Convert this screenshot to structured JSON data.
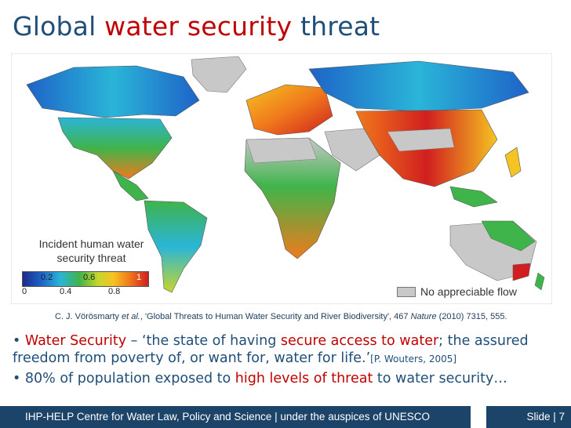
{
  "title": {
    "part1": "Global ",
    "accent": "water security",
    "part2": " threat"
  },
  "map": {
    "legend_title": "Incident human water security threat",
    "legend_ticks_top": [
      "0.2",
      "0.6",
      "1"
    ],
    "legend_ticks_bottom": [
      "0",
      "0.4",
      "0.8"
    ],
    "no_flow_label": "No appreciable flow",
    "colors": {
      "ocean": "#ffffff",
      "no_flow": "#c8c8c8",
      "low": "#1e63c8",
      "mid": "#3fb44a",
      "high": "#d11f1f"
    }
  },
  "citation": {
    "authors": "C. J. Vörösmarty ",
    "etal": "et al.",
    "rest": ", 'Global Threats to Human Water Security and River Biodiversity', 467 ",
    "journal": "Nature",
    "end": " (2010) 7315, 555."
  },
  "bullets": {
    "b1_lead": "• ",
    "b1_term": "Water Security",
    "b1_mid": " – ‘the state of having ",
    "b1_hl": "secure access to water",
    "b1_rest": "; the assured freedom from poverty of, or want for, water for life.’",
    "b1_ref": "[P. Wouters, 2005]",
    "b2_lead": "• 80% of population exposed to ",
    "b2_hl": "high levels of threat",
    "b2_rest": " to water security…"
  },
  "footer": {
    "left": "IHP-HELP Centre for Water Law, Policy and Science | under the auspices of UNESCO",
    "right": "Slide | 7"
  }
}
